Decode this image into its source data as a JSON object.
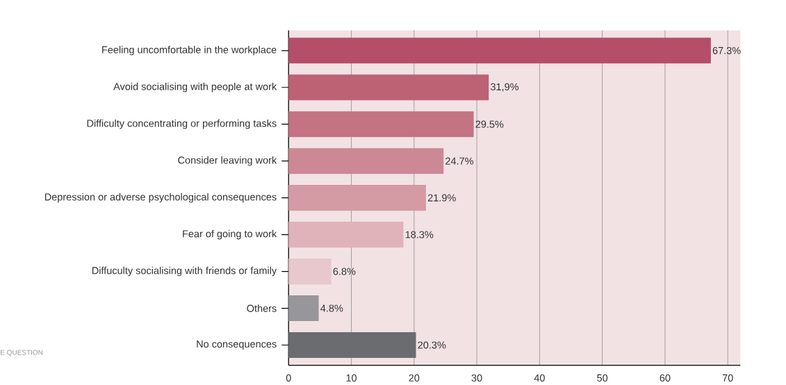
{
  "chart_data": {
    "type": "bar",
    "orientation": "horizontal",
    "categories": [
      "Feeling uncomfortable in the workplace",
      "Avoid socialising with people at work",
      "Difficulty concentrating or performing tasks",
      "Consider leaving work",
      "Depression or adverse psychological consequences",
      "Fear of going to work",
      "Diffuculty socialising with friends or family",
      "Others",
      "No consequences"
    ],
    "values": [
      67.3,
      31.9,
      29.5,
      24.7,
      21.9,
      18.3,
      6.8,
      4.8,
      20.3
    ],
    "value_labels": [
      "67.3%",
      "31,9%",
      "29.5%",
      "24.7%",
      "21.9%",
      "18.3%",
      "6.8%",
      "4.8%",
      "20.3%"
    ],
    "colors": [
      "#b54e68",
      "#bd6275",
      "#c37382",
      "#cc8895",
      "#d49ba5",
      "#e0b3bb",
      "#e7c8cc",
      "#97979b",
      "#6b6c70"
    ],
    "xlim": [
      0,
      72
    ],
    "xticks": [
      0,
      10,
      20,
      30,
      40,
      50,
      60,
      70
    ],
    "grid": "x",
    "annotations": [
      "E QUESTION"
    ]
  }
}
